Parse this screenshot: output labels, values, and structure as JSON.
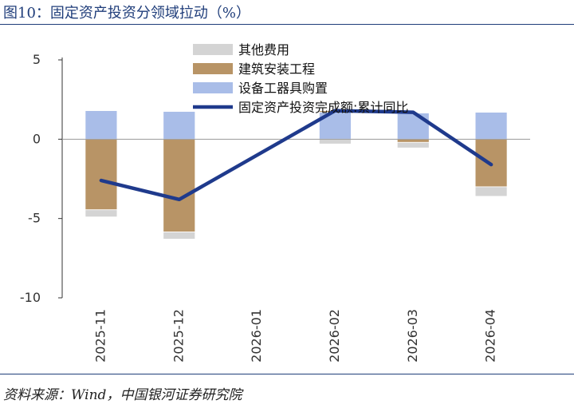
{
  "header": {
    "title": "图10：固定资产投资分领域拉动（%）"
  },
  "footer": {
    "source": "资料来源：Wind，中国银河证券研究院"
  },
  "chart_data": {
    "type": "bar",
    "subtype": "stacked-bar-with-line",
    "categories": [
      "2025-11",
      "2025-12",
      "2026-01",
      "2026-02",
      "2026-03",
      "2026-04"
    ],
    "ylim": [
      -10,
      5
    ],
    "yticks": [
      "5",
      "0",
      "-5",
      "-10"
    ],
    "grid": false,
    "legend_position": "top-center",
    "series": [
      {
        "name": "其他费用",
        "kind": "bar",
        "color": "#d4d4d4",
        "values": [
          -0.45,
          -0.45,
          null,
          -0.3,
          -0.35,
          -0.6
        ]
      },
      {
        "name": "建筑安装工程",
        "kind": "bar",
        "color": "#b89466",
        "values": [
          -4.45,
          -5.85,
          null,
          0.1,
          -0.2,
          -3.0
        ]
      },
      {
        "name": "设备工器具购置",
        "kind": "bar",
        "color": "#a9bde8",
        "values": [
          1.8,
          1.75,
          null,
          1.7,
          1.65,
          1.7
        ]
      },
      {
        "name": "固定资产投资完成额:累计同比",
        "kind": "line",
        "color": "#1f3a8c",
        "values": [
          -2.6,
          -3.8,
          null,
          1.8,
          1.7,
          -1.6
        ]
      }
    ]
  }
}
